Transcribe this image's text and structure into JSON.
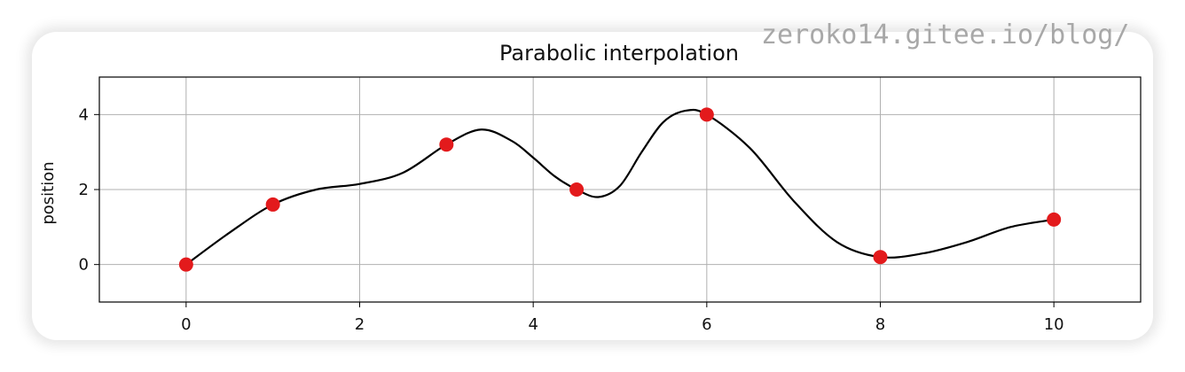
{
  "watermark": "zeroko14.gitee.io/blog/",
  "chart_data": {
    "type": "line",
    "title": "Parabolic interpolation",
    "xlabel": "",
    "ylabel": "position",
    "xlim": [
      -1,
      11
    ],
    "ylim": [
      -1,
      5
    ],
    "x_ticks": [
      0,
      2,
      4,
      6,
      8,
      10
    ],
    "y_ticks": [
      0,
      2,
      4
    ],
    "grid": true,
    "series": [
      {
        "kind": "line",
        "color": "#000000",
        "x": [
          0,
          0.5,
          1,
          1.5,
          2,
          2.5,
          3,
          3.4,
          3.75,
          4,
          4.25,
          4.5,
          4.75,
          5,
          5.25,
          5.5,
          5.75,
          6,
          6.5,
          7,
          7.5,
          8,
          8.5,
          9,
          9.5,
          10
        ],
        "y": [
          0,
          0.85,
          1.6,
          2.0,
          2.15,
          2.45,
          3.2,
          3.6,
          3.3,
          2.85,
          2.35,
          2.0,
          1.8,
          2.1,
          3.0,
          3.8,
          4.1,
          4.0,
          3.1,
          1.7,
          0.6,
          0.2,
          0.3,
          0.6,
          1.0,
          1.2
        ]
      },
      {
        "kind": "scatter",
        "color": "#e31a1c",
        "x": [
          0,
          1,
          3,
          4.5,
          6,
          8,
          10
        ],
        "y": [
          0,
          1.6,
          3.2,
          2.0,
          4.0,
          0.2,
          1.2
        ]
      }
    ]
  }
}
